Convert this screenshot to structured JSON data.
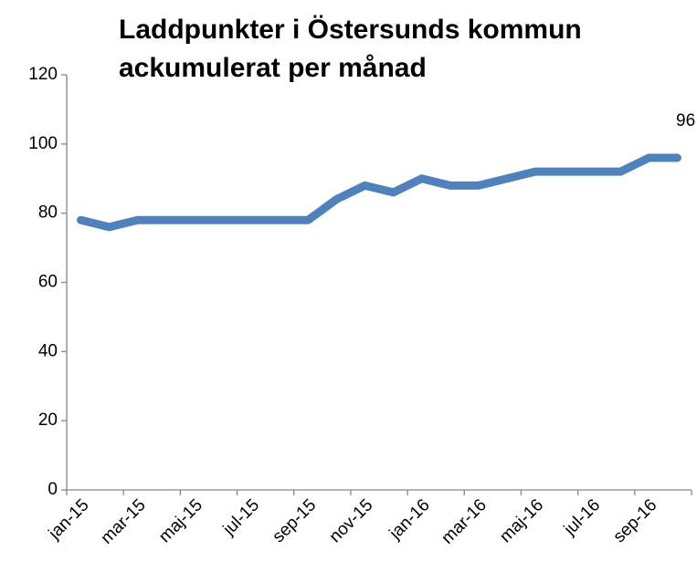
{
  "chart_data": {
    "type": "line",
    "title": [
      "Laddpunkter i Östersunds kommun",
      "ackumulerat per månad"
    ],
    "categories": [
      "jan-15",
      null,
      "mar-15",
      null,
      "maj-15",
      null,
      "jul-15",
      null,
      "sep-15",
      null,
      "nov-15",
      null,
      "jan-16",
      null,
      "mar-16",
      null,
      "maj-16",
      null,
      "jul-16",
      null,
      "sep-16",
      null
    ],
    "values": [
      78,
      76,
      78,
      78,
      78,
      78,
      78,
      78,
      78,
      84,
      88,
      86,
      90,
      88,
      88,
      90,
      92,
      92,
      92,
      92,
      96,
      96
    ],
    "color": "#4f81bd",
    "label_last": true,
    "ylim": [
      0,
      120
    ],
    "yticks": [
      0,
      20,
      40,
      60,
      80,
      100,
      120
    ],
    "grid": false
  }
}
